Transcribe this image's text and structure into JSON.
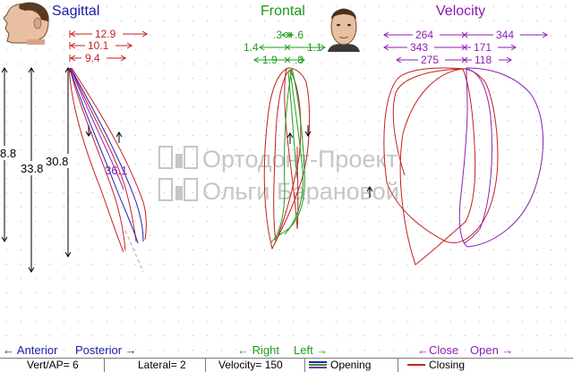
{
  "panels": {
    "sagittal": {
      "title": "Sagittal",
      "title_color": "#1a1aa8",
      "face": "side-face-icon",
      "widths": [
        "12.9",
        "10.1",
        "9.4"
      ],
      "vertical_left": "8.8",
      "vertical_mid": "33.8",
      "vertical_right": "30.8",
      "angle": "36.1",
      "dir_left": "← Anterior",
      "dir_right": "Posterior →"
    },
    "frontal": {
      "title": "Frontal",
      "title_color": "#1a9a1a",
      "face": "front-face-icon",
      "row1_left": ".3",
      "row1_right": ".6",
      "row2_left": "1.4",
      "row2_right": "1.1",
      "row3_left": "1.9",
      "row3_right": ".8",
      "dir_left": "← Right",
      "dir_right": "Left →"
    },
    "velocity": {
      "title": "Velocity",
      "title_color": "#8a1ab0",
      "row1_left": "264",
      "row1_right": "344",
      "row2_left": "343",
      "row2_right": "171",
      "row3_left": "275",
      "row3_right": "118",
      "dir_left": "←Close",
      "dir_right": "Open →"
    }
  },
  "watermark": {
    "line1": "Ортодонт-Проект",
    "line2": "Ольги Барановой"
  },
  "status": {
    "vert_ap": "Vert/AP= 6",
    "lateral": "Lateral= 2",
    "velocity": "Velocity= 150",
    "opening": "Opening",
    "closing": "Closing"
  },
  "colors": {
    "red": "#c81e1e",
    "blue": "#1e1eb4",
    "green": "#1e9e1e",
    "purple": "#8c1eb4",
    "black": "#000000"
  }
}
